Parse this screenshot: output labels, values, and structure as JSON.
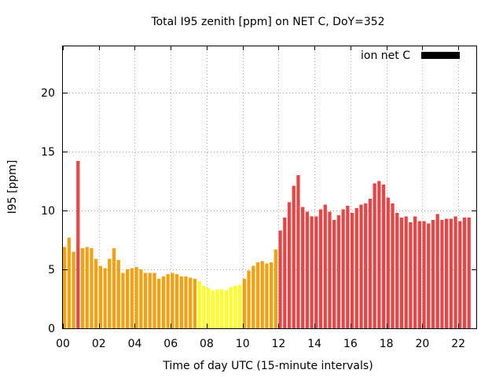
{
  "chart_data": {
    "type": "bar",
    "title": "Total I95 zenith [ppm] on NET C, DoY=352",
    "xlabel": "Time of day UTC (15-minute intervals)",
    "ylabel": "I95 [ppm]",
    "xlim": [
      0,
      23
    ],
    "ylim": [
      0,
      24
    ],
    "grid": true,
    "legend": {
      "position": "top-right",
      "entries": [
        {
          "label": "ion net C",
          "color": "#000000"
        }
      ]
    },
    "x_ticks": [
      {
        "value": 0,
        "label": "00"
      },
      {
        "value": 2,
        "label": "02"
      },
      {
        "value": 4,
        "label": "04"
      },
      {
        "value": 6,
        "label": "06"
      },
      {
        "value": 8,
        "label": "08"
      },
      {
        "value": 10,
        "label": "10"
      },
      {
        "value": 12,
        "label": "12"
      },
      {
        "value": 14,
        "label": "14"
      },
      {
        "value": 16,
        "label": "16"
      },
      {
        "value": 18,
        "label": "18"
      },
      {
        "value": 20,
        "label": "20"
      },
      {
        "value": 22,
        "label": "22"
      }
    ],
    "y_ticks": [
      {
        "value": 0,
        "label": "0"
      },
      {
        "value": 5,
        "label": "5"
      },
      {
        "value": 10,
        "label": "10"
      },
      {
        "value": 15,
        "label": "15"
      },
      {
        "value": 20,
        "label": "20"
      }
    ],
    "colors": {
      "red": "#e84646",
      "orange": "#f5a010",
      "yellow": "#ffff20"
    },
    "bin_hours": 0.25,
    "bars": [
      {
        "t": 0.0,
        "v": 6.9,
        "c": "orange"
      },
      {
        "t": 0.25,
        "v": 7.7,
        "c": "orange"
      },
      {
        "t": 0.5,
        "v": 6.5,
        "c": "orange"
      },
      {
        "t": 0.75,
        "v": 14.2,
        "c": "red"
      },
      {
        "t": 1.0,
        "v": 6.8,
        "c": "orange"
      },
      {
        "t": 1.25,
        "v": 6.9,
        "c": "orange"
      },
      {
        "t": 1.5,
        "v": 6.8,
        "c": "orange"
      },
      {
        "t": 1.75,
        "v": 5.9,
        "c": "orange"
      },
      {
        "t": 2.0,
        "v": 5.3,
        "c": "orange"
      },
      {
        "t": 2.25,
        "v": 5.1,
        "c": "orange"
      },
      {
        "t": 2.5,
        "v": 5.9,
        "c": "orange"
      },
      {
        "t": 2.75,
        "v": 6.8,
        "c": "orange"
      },
      {
        "t": 3.0,
        "v": 5.8,
        "c": "orange"
      },
      {
        "t": 3.25,
        "v": 4.7,
        "c": "orange"
      },
      {
        "t": 3.5,
        "v": 5.0,
        "c": "orange"
      },
      {
        "t": 3.75,
        "v": 5.1,
        "c": "orange"
      },
      {
        "t": 4.0,
        "v": 5.2,
        "c": "orange"
      },
      {
        "t": 4.25,
        "v": 5.0,
        "c": "orange"
      },
      {
        "t": 4.5,
        "v": 4.7,
        "c": "orange"
      },
      {
        "t": 4.75,
        "v": 4.7,
        "c": "orange"
      },
      {
        "t": 5.0,
        "v": 4.7,
        "c": "orange"
      },
      {
        "t": 5.25,
        "v": 4.2,
        "c": "orange"
      },
      {
        "t": 5.5,
        "v": 4.4,
        "c": "orange"
      },
      {
        "t": 5.75,
        "v": 4.6,
        "c": "orange"
      },
      {
        "t": 6.0,
        "v": 4.7,
        "c": "orange"
      },
      {
        "t": 6.25,
        "v": 4.6,
        "c": "orange"
      },
      {
        "t": 6.5,
        "v": 4.4,
        "c": "orange"
      },
      {
        "t": 6.75,
        "v": 4.4,
        "c": "orange"
      },
      {
        "t": 7.0,
        "v": 4.3,
        "c": "orange"
      },
      {
        "t": 7.25,
        "v": 4.2,
        "c": "orange"
      },
      {
        "t": 7.5,
        "v": 4.0,
        "c": "yellow"
      },
      {
        "t": 7.75,
        "v": 3.6,
        "c": "yellow"
      },
      {
        "t": 8.0,
        "v": 3.4,
        "c": "yellow"
      },
      {
        "t": 8.25,
        "v": 3.2,
        "c": "yellow"
      },
      {
        "t": 8.5,
        "v": 3.3,
        "c": "yellow"
      },
      {
        "t": 8.75,
        "v": 3.3,
        "c": "yellow"
      },
      {
        "t": 9.0,
        "v": 3.2,
        "c": "yellow"
      },
      {
        "t": 9.25,
        "v": 3.5,
        "c": "yellow"
      },
      {
        "t": 9.5,
        "v": 3.6,
        "c": "yellow"
      },
      {
        "t": 9.75,
        "v": 3.7,
        "c": "yellow"
      },
      {
        "t": 10.0,
        "v": 4.2,
        "c": "orange"
      },
      {
        "t": 10.25,
        "v": 4.9,
        "c": "orange"
      },
      {
        "t": 10.5,
        "v": 5.3,
        "c": "orange"
      },
      {
        "t": 10.75,
        "v": 5.6,
        "c": "orange"
      },
      {
        "t": 11.0,
        "v": 5.7,
        "c": "orange"
      },
      {
        "t": 11.25,
        "v": 5.5,
        "c": "orange"
      },
      {
        "t": 11.5,
        "v": 5.6,
        "c": "orange"
      },
      {
        "t": 11.75,
        "v": 6.7,
        "c": "orange"
      },
      {
        "t": 12.0,
        "v": 8.3,
        "c": "red"
      },
      {
        "t": 12.25,
        "v": 9.4,
        "c": "red"
      },
      {
        "t": 12.5,
        "v": 10.7,
        "c": "red"
      },
      {
        "t": 12.75,
        "v": 12.1,
        "c": "red"
      },
      {
        "t": 13.0,
        "v": 13.0,
        "c": "red"
      },
      {
        "t": 13.25,
        "v": 10.3,
        "c": "red"
      },
      {
        "t": 13.5,
        "v": 9.9,
        "c": "red"
      },
      {
        "t": 13.75,
        "v": 9.5,
        "c": "red"
      },
      {
        "t": 14.0,
        "v": 9.5,
        "c": "red"
      },
      {
        "t": 14.25,
        "v": 10.1,
        "c": "red"
      },
      {
        "t": 14.5,
        "v": 10.5,
        "c": "red"
      },
      {
        "t": 14.75,
        "v": 9.9,
        "c": "red"
      },
      {
        "t": 15.0,
        "v": 9.2,
        "c": "red"
      },
      {
        "t": 15.25,
        "v": 9.6,
        "c": "red"
      },
      {
        "t": 15.5,
        "v": 10.1,
        "c": "red"
      },
      {
        "t": 15.75,
        "v": 10.4,
        "c": "red"
      },
      {
        "t": 16.0,
        "v": 9.8,
        "c": "red"
      },
      {
        "t": 16.25,
        "v": 10.2,
        "c": "red"
      },
      {
        "t": 16.5,
        "v": 10.5,
        "c": "red"
      },
      {
        "t": 16.75,
        "v": 10.6,
        "c": "red"
      },
      {
        "t": 17.0,
        "v": 11.0,
        "c": "red"
      },
      {
        "t": 17.25,
        "v": 12.3,
        "c": "red"
      },
      {
        "t": 17.5,
        "v": 12.5,
        "c": "red"
      },
      {
        "t": 17.75,
        "v": 12.2,
        "c": "red"
      },
      {
        "t": 18.0,
        "v": 11.1,
        "c": "red"
      },
      {
        "t": 18.25,
        "v": 10.6,
        "c": "red"
      },
      {
        "t": 18.5,
        "v": 9.8,
        "c": "red"
      },
      {
        "t": 18.75,
        "v": 9.4,
        "c": "red"
      },
      {
        "t": 19.0,
        "v": 9.5,
        "c": "red"
      },
      {
        "t": 19.25,
        "v": 9.0,
        "c": "red"
      },
      {
        "t": 19.5,
        "v": 9.5,
        "c": "red"
      },
      {
        "t": 19.75,
        "v": 9.1,
        "c": "red"
      },
      {
        "t": 20.0,
        "v": 9.1,
        "c": "red"
      },
      {
        "t": 20.25,
        "v": 8.9,
        "c": "red"
      },
      {
        "t": 20.5,
        "v": 9.2,
        "c": "red"
      },
      {
        "t": 20.75,
        "v": 9.7,
        "c": "red"
      },
      {
        "t": 21.0,
        "v": 9.2,
        "c": "red"
      },
      {
        "t": 21.25,
        "v": 9.3,
        "c": "red"
      },
      {
        "t": 21.5,
        "v": 9.3,
        "c": "red"
      },
      {
        "t": 21.75,
        "v": 9.5,
        "c": "red"
      },
      {
        "t": 22.0,
        "v": 9.1,
        "c": "red"
      },
      {
        "t": 22.25,
        "v": 9.4,
        "c": "red"
      },
      {
        "t": 22.5,
        "v": 9.4,
        "c": "red"
      }
    ]
  }
}
